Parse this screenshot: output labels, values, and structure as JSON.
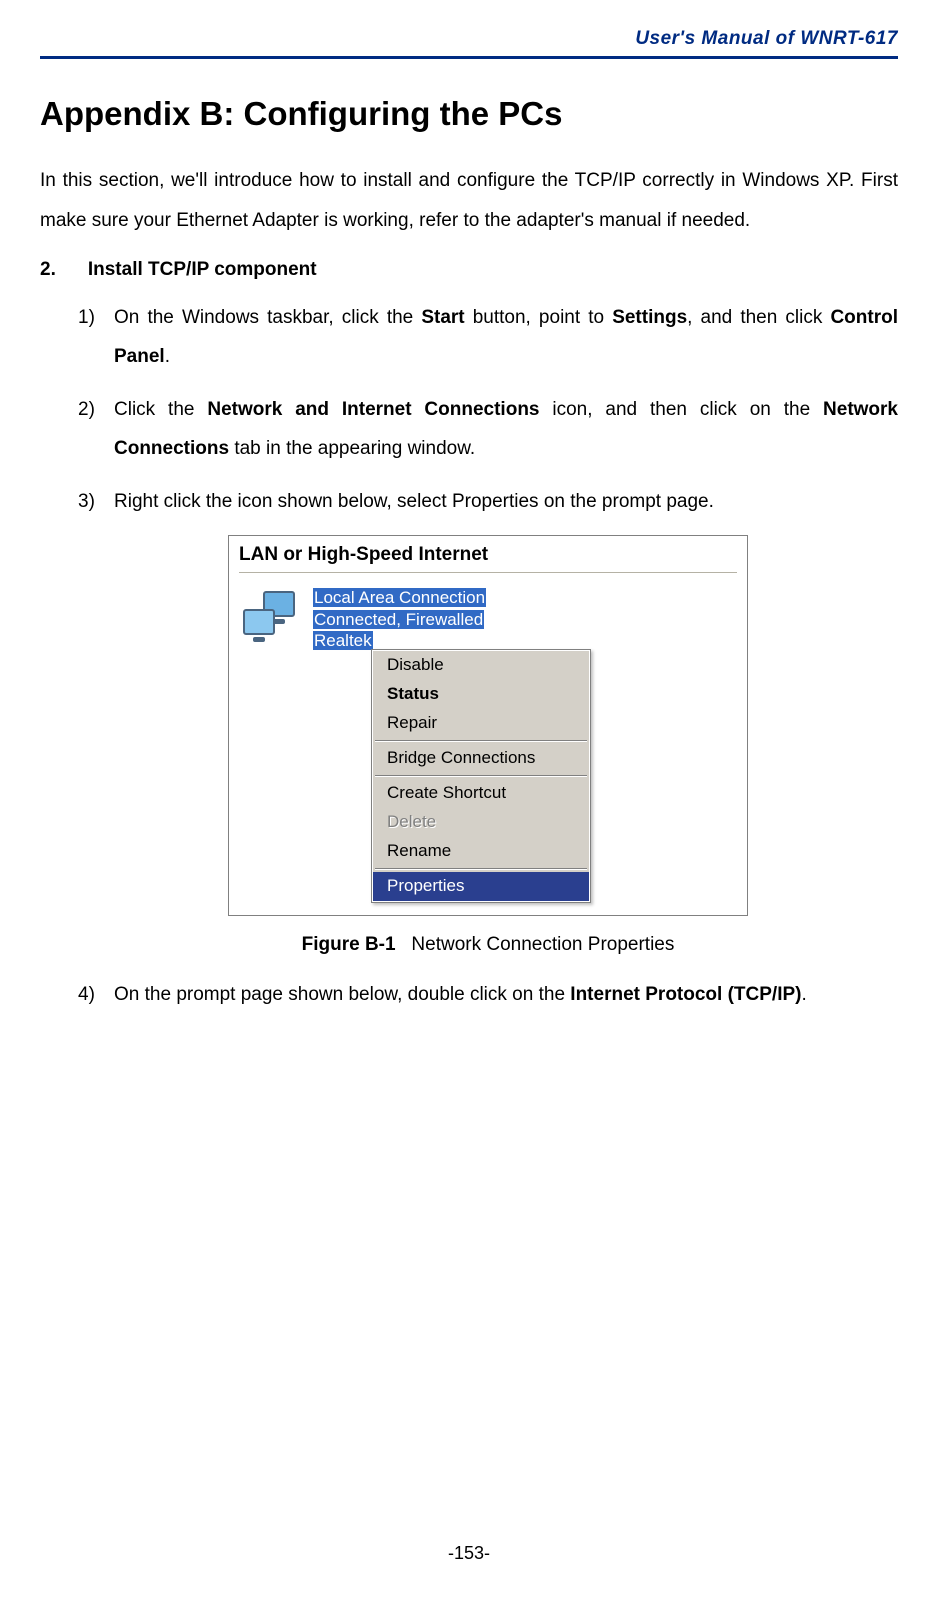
{
  "header": {
    "doc_title": "User's Manual of WNRT-617",
    "hr_color": "#002b82"
  },
  "page": {
    "title": "Appendix B: Configuring the PCs",
    "intro": "In this section, we'll introduce how to install and configure the TCP/IP correctly in Windows XP. First make sure your Ethernet Adapter is working, refer to the adapter's manual if needed.",
    "section_number": "2.",
    "section_title": "Install TCP/IP component",
    "steps": {
      "s1_num": "1)",
      "s1_a": "On the Windows taskbar, click the ",
      "s1_b": "Start",
      "s1_c": " button, point to ",
      "s1_d": "Settings",
      "s1_e": ", and then click ",
      "s1_f": "Control Panel",
      "s1_g": ".",
      "s2_num": "2)",
      "s2_a": "Click the ",
      "s2_b": "Network and Internet Connections",
      "s2_c": " icon, and then click on the ",
      "s2_d": "Network Connections",
      "s2_e": " tab in the appearing window.",
      "s3_num": "3)",
      "s3_a": "Right click the icon shown below, select Properties on the prompt page.",
      "s4_num": "4)",
      "s4_a": "On the prompt page shown below, double click on the ",
      "s4_b": "Internet Protocol (TCP/IP)",
      "s4_c": "."
    },
    "figure": {
      "panel_title": "LAN or High-Speed Internet",
      "conn_line1": "Local Area Connection",
      "conn_line2": "Connected, Firewalled",
      "conn_line3": "Realtek",
      "menu": {
        "disable": "Disable",
        "status": "Status",
        "repair": "Repair",
        "bridge": "Bridge Connections",
        "shortcut": "Create Shortcut",
        "delete": "Delete",
        "rename": "Rename",
        "properties": "Properties",
        "selected_bg": "#2a3f8f",
        "menu_bg": "#d4d0c8"
      },
      "caption_label": "Figure B-1",
      "caption_text": "Network Connection Properties"
    },
    "page_number": "-153-"
  }
}
